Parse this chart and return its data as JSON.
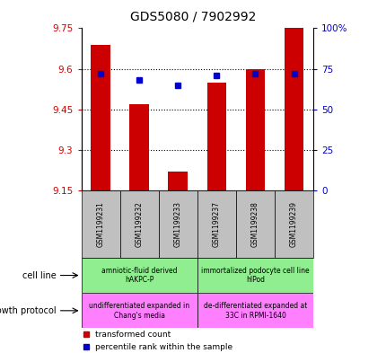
{
  "title": "GDS5080 / 7902992",
  "samples": [
    "GSM1199231",
    "GSM1199232",
    "GSM1199233",
    "GSM1199237",
    "GSM1199238",
    "GSM1199239"
  ],
  "transformed_count": [
    9.69,
    9.47,
    9.22,
    9.55,
    9.6,
    9.75
  ],
  "percentile_rank": [
    72,
    68,
    65,
    71,
    72,
    72
  ],
  "ylim_left": [
    9.15,
    9.75
  ],
  "ylim_right": [
    0,
    100
  ],
  "yticks_left": [
    9.15,
    9.3,
    9.45,
    9.6,
    9.75
  ],
  "yticks_right": [
    0,
    25,
    50,
    75,
    100
  ],
  "ytick_labels_right": [
    "0",
    "25",
    "50",
    "75",
    "100%"
  ],
  "bar_color": "#CC0000",
  "dot_color": "#0000CC",
  "bar_bottom": 9.15,
  "grid_color": "#000000",
  "bg_color": "#FFFFFF",
  "tick_color_left": "#CC0000",
  "tick_color_right": "#0000CC",
  "cell_line_label1": "amniotic-fluid derived\nhAKPC-P",
  "cell_line_label2": "immortalized podocyte cell line\nhIPod",
  "growth_label1": "undifferentiated expanded in\nChang's media",
  "growth_label2": "de-differentiated expanded at\n33C in RPMI-1640",
  "cell_line_color": "#90EE90",
  "growth_color": "#FF80FF",
  "sample_box_color": "#C0C0C0",
  "legend_label1": "transformed count",
  "legend_label2": "percentile rank within the sample"
}
